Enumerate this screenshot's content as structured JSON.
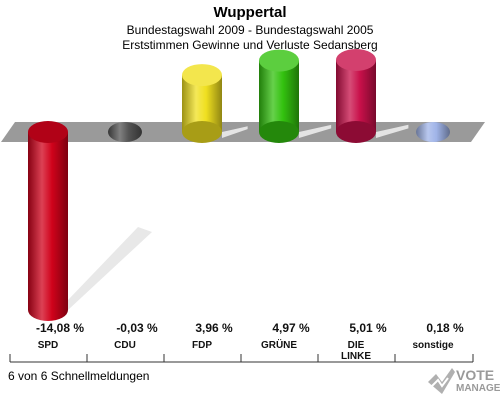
{
  "header": {
    "title": "Wuppertal",
    "subtitle1": "Bundestagswahl 2009 - Bundestagswahl 2005",
    "subtitle2": "Erststimmen Gewinne und Verluste Sedansberg"
  },
  "footer": {
    "note": "6 von 6 Schnellmeldungen"
  },
  "logo": {
    "line1": "VOTE",
    "line2": "MANAGER"
  },
  "chart_data": {
    "type": "bar",
    "categories": [
      "SPD",
      "CDU",
      "FDP",
      "GRÜNE",
      "DIE LINKE",
      "sonstige"
    ],
    "category_lines": [
      [
        "SPD"
      ],
      [
        "CDU"
      ],
      [
        "FDP"
      ],
      [
        "GRÜNE"
      ],
      [
        "DIE",
        "LINKE"
      ],
      [
        "sonstige"
      ]
    ],
    "values": [
      -14.08,
      -0.03,
      3.96,
      4.97,
      5.01,
      0.18
    ],
    "value_labels": [
      "-14,08 %",
      "-0,03 %",
      "3,96 %",
      "4,97 %",
      "5,01 %",
      "0,18 %"
    ],
    "colors": [
      "#d0021b",
      "#555555",
      "#f0e020",
      "#33c20f",
      "#c8104a",
      "#a0b4e8"
    ],
    "title": "Wuppertal",
    "subtitle": "Bundestagswahl 2009 - Bundestagswahl 2005 / Erststimmen Gewinne und Verluste Sedansberg",
    "ylim": [
      -14.08,
      5.01
    ],
    "grid": false,
    "legend": "none"
  }
}
